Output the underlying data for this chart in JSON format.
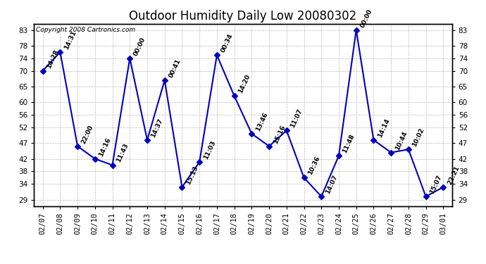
{
  "title": "Outdoor Humidity Daily Low 20080302",
  "copyright": "Copyright 2008 Cartronics.com",
  "line_color": "#0000bb",
  "bg_color": "#ffffff",
  "grid_color": "#bbbbbb",
  "x_labels": [
    "02/07",
    "02/08",
    "02/09",
    "02/10",
    "02/11",
    "02/12",
    "02/13",
    "02/14",
    "02/15",
    "02/16",
    "02/17",
    "02/18",
    "02/19",
    "02/20",
    "02/21",
    "02/22",
    "02/23",
    "02/24",
    "02/25",
    "02/26",
    "02/27",
    "02/28",
    "02/29",
    "03/01"
  ],
  "y_values": [
    70,
    76,
    46,
    42,
    40,
    74,
    48,
    67,
    33,
    41,
    75,
    62,
    50,
    46,
    51,
    36,
    30,
    43,
    83,
    48,
    44,
    45,
    30,
    33
  ],
  "point_labels": [
    "14:28",
    "14:31",
    "22:00",
    "14:16",
    "11:43",
    "00:00",
    "14:37",
    "00:41",
    "15:13",
    "11:03",
    "00:34",
    "14:20",
    "13:46",
    "15:16",
    "11:07",
    "10:36",
    "14:07",
    "11:48",
    "00:00",
    "14:14",
    "10:44",
    "10:02",
    "15:07",
    "22:21"
  ],
  "yticks": [
    29,
    34,
    38,
    42,
    47,
    52,
    56,
    60,
    65,
    70,
    74,
    78,
    83
  ],
  "ymin": 27,
  "ymax": 85,
  "marker_size": 5,
  "line_width": 1.5,
  "title_fontsize": 12,
  "label_fontsize": 6.5,
  "tick_fontsize": 7.5,
  "copyright_fontsize": 6.5
}
